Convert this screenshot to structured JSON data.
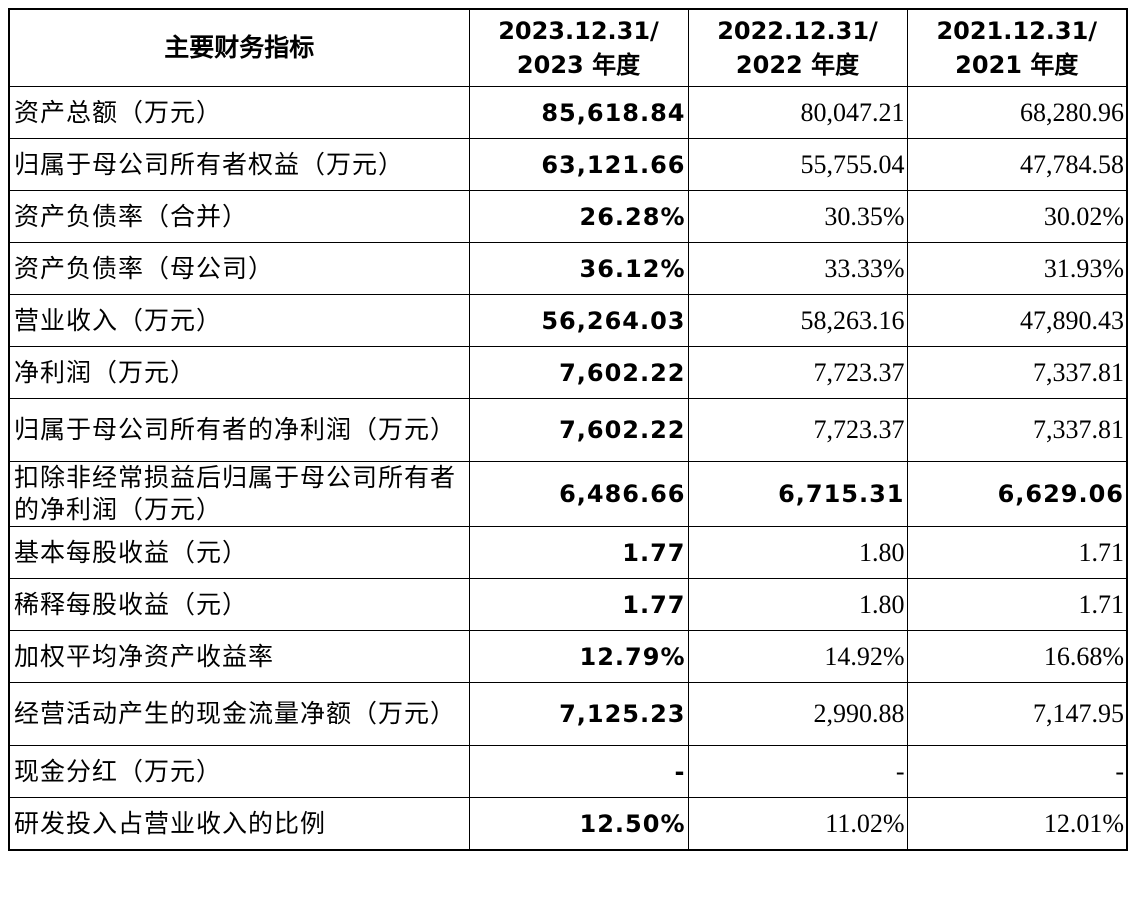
{
  "table": {
    "headers": [
      "主要财务指标",
      "2023.12.31/\n2023 年度",
      "2022.12.31/\n2022 年度",
      "2021.12.31/\n2021 年度"
    ],
    "header_lines": [
      [
        "主要财务指标"
      ],
      [
        "2023.12.31/",
        "2023 年度"
      ],
      [
        "2022.12.31/",
        "2022 年度"
      ],
      [
        "2021.12.31/",
        "2021 年度"
      ]
    ],
    "rows": [
      {
        "label": "资产总额（万元）",
        "v2023": "85,618.84",
        "v2022": "80,047.21",
        "v2021": "68,280.96"
      },
      {
        "label": "归属于母公司所有者权益（万元）",
        "v2023": "63,121.66",
        "v2022": "55,755.04",
        "v2021": "47,784.58"
      },
      {
        "label": "资产负债率（合并）",
        "v2023": "26.28%",
        "v2022": "30.35%",
        "v2021": "30.02%"
      },
      {
        "label": "资产负债率（母公司）",
        "v2023": "36.12%",
        "v2022": "33.33%",
        "v2021": "31.93%"
      },
      {
        "label": "营业收入（万元）",
        "v2023": "56,264.03",
        "v2022": "58,263.16",
        "v2021": "47,890.43"
      },
      {
        "label": "净利润（万元）",
        "v2023": "7,602.22",
        "v2022": "7,723.37",
        "v2021": "7,337.81"
      },
      {
        "label": "归属于母公司所有者的净利润（万元）",
        "v2023": "7,602.22",
        "v2022": "7,723.37",
        "v2021": "7,337.81"
      },
      {
        "label": "扣除非经常损益后归属于母公司所有者的净利润（万元）",
        "v2023": "6,486.66",
        "v2022": "6,715.31",
        "v2021": "6,629.06"
      },
      {
        "label": "基本每股收益（元）",
        "v2023": "1.77",
        "v2022": "1.80",
        "v2021": "1.71"
      },
      {
        "label": "稀释每股收益（元）",
        "v2023": "1.77",
        "v2022": "1.80",
        "v2021": "1.71"
      },
      {
        "label": "加权平均净资产收益率",
        "v2023": "12.79%",
        "v2022": "14.92%",
        "v2021": "16.68%"
      },
      {
        "label": "经营活动产生的现金流量净额（万元）",
        "v2023": "7,125.23",
        "v2022": "2,990.88",
        "v2021": "7,147.95"
      },
      {
        "label": "现金分红（万元）",
        "v2023": "-",
        "v2022": "-",
        "v2021": "-"
      },
      {
        "label": "研发投入占营业收入的比例",
        "v2023": "12.50%",
        "v2022": "11.02%",
        "v2021": "12.01%"
      }
    ]
  }
}
